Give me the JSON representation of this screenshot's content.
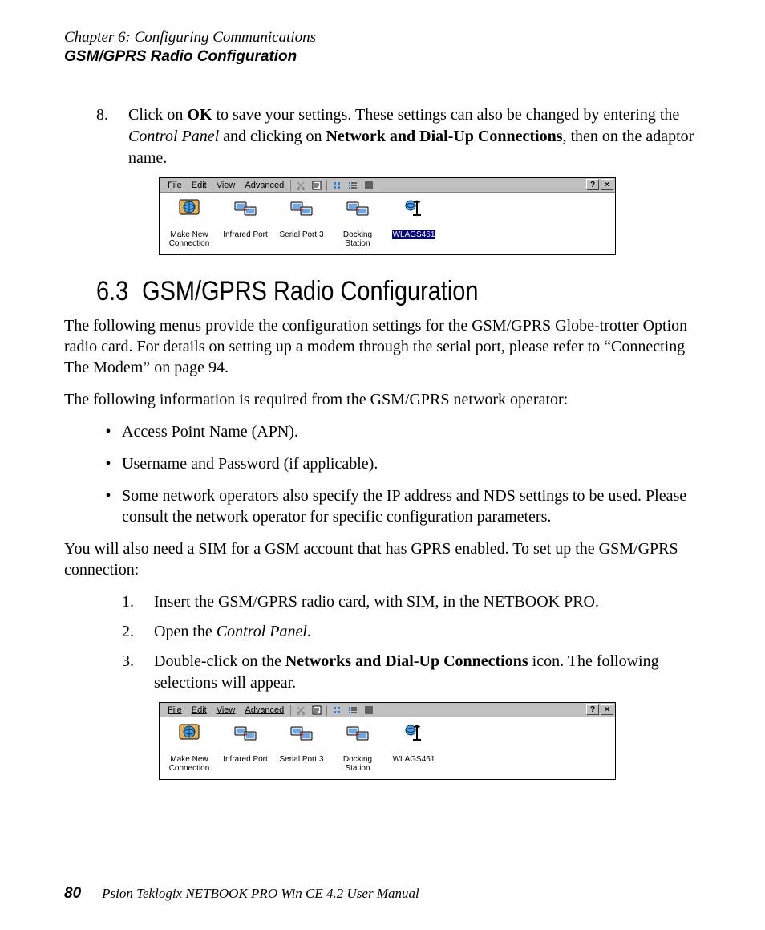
{
  "header": {
    "chapter": "Chapter 6:  Configuring Communications",
    "section": "GSM/GPRS Radio Configuration"
  },
  "step8": {
    "num": "8.",
    "pre": "Click on ",
    "ok": "OK",
    "mid1": " to save your settings. These settings can also be changed by entering the ",
    "cp": "Control Panel",
    "mid2": " and clicking on ",
    "ndu": "Network and Dial-Up Connections",
    "post": ", then on the adaptor name."
  },
  "screenshot1": {
    "menus": {
      "file": "File",
      "edit": "Edit",
      "view": "View",
      "advanced": "Advanced"
    },
    "winbtns": {
      "help": "?",
      "close": "×"
    },
    "icons": [
      {
        "name": "make-new-connection-icon",
        "label": "Make New Connection",
        "type": "globe",
        "selected": false
      },
      {
        "name": "infrared-port-icon",
        "label": "Infrared Port",
        "type": "host",
        "selected": false
      },
      {
        "name": "serial-port-3-icon",
        "label": "Serial Port 3",
        "type": "host",
        "selected": false
      },
      {
        "name": "docking-station-icon",
        "label": "Docking Station",
        "type": "host",
        "selected": false
      },
      {
        "name": "wlags461-icon",
        "label": "WLAGS461",
        "type": "wlan",
        "selected": true
      }
    ],
    "colors": {
      "menubar_bg": "#c0c0c0",
      "client_bg": "#ffffff",
      "sel_bg": "#000080",
      "sel_fg": "#ffffff"
    }
  },
  "heading": {
    "num": "6.3",
    "title": "GSM/GPRS Radio Configuration"
  },
  "p1": "The following menus provide the configuration settings for the GSM/GPRS Globe-trotter Option radio card. For details on setting up a modem through the serial port, please refer to “Connecting The Modem” on page 94.",
  "p2": "The following information is required from the GSM/GPRS network operator:",
  "bullets": [
    "Access Point Name (APN).",
    "Username and Password (if applicable).",
    "Some network operators also specify the IP address and NDS settings to be used. Please consult the network operator for specific configuration parameters."
  ],
  "p3": "You will also need a SIM for a GSM account that has GPRS enabled. To set up the GSM/GPRS connection:",
  "steps": {
    "s1": {
      "num": "1.",
      "text": "Insert the GSM/GPRS radio card, with SIM, in the NETBOOK PRO."
    },
    "s2": {
      "num": "2.",
      "pre": "Open the ",
      "cp": "Control Panel",
      "post": "."
    },
    "s3": {
      "num": "3.",
      "pre": "Double-click on the ",
      "b": "Networks and Dial-Up Connections",
      "post": " icon. The following selections will appear."
    }
  },
  "screenshot2": {
    "menus": {
      "file": "File",
      "edit": "Edit",
      "view": "View",
      "advanced": "Advanced"
    },
    "winbtns": {
      "help": "?",
      "close": "×"
    },
    "icons": [
      {
        "name": "make-new-connection-icon",
        "label": "Make New Connection",
        "type": "globe",
        "selected": false
      },
      {
        "name": "infrared-port-icon",
        "label": "Infrared Port",
        "type": "host",
        "selected": false
      },
      {
        "name": "serial-port-3-icon",
        "label": "Serial Port 3",
        "type": "host",
        "selected": false
      },
      {
        "name": "docking-station-icon",
        "label": "Docking Station",
        "type": "host",
        "selected": false
      },
      {
        "name": "wlags461-icon",
        "label": "WLAGS461",
        "type": "wlan",
        "selected": false
      }
    ],
    "colors": {
      "menubar_bg": "#c0c0c0",
      "client_bg": "#ffffff",
      "sel_bg": "#000080",
      "sel_fg": "#ffffff"
    }
  },
  "footer": {
    "page": "80",
    "title": "Psion Teklogix NETBOOK PRO Win CE 4.2 User Manual"
  }
}
